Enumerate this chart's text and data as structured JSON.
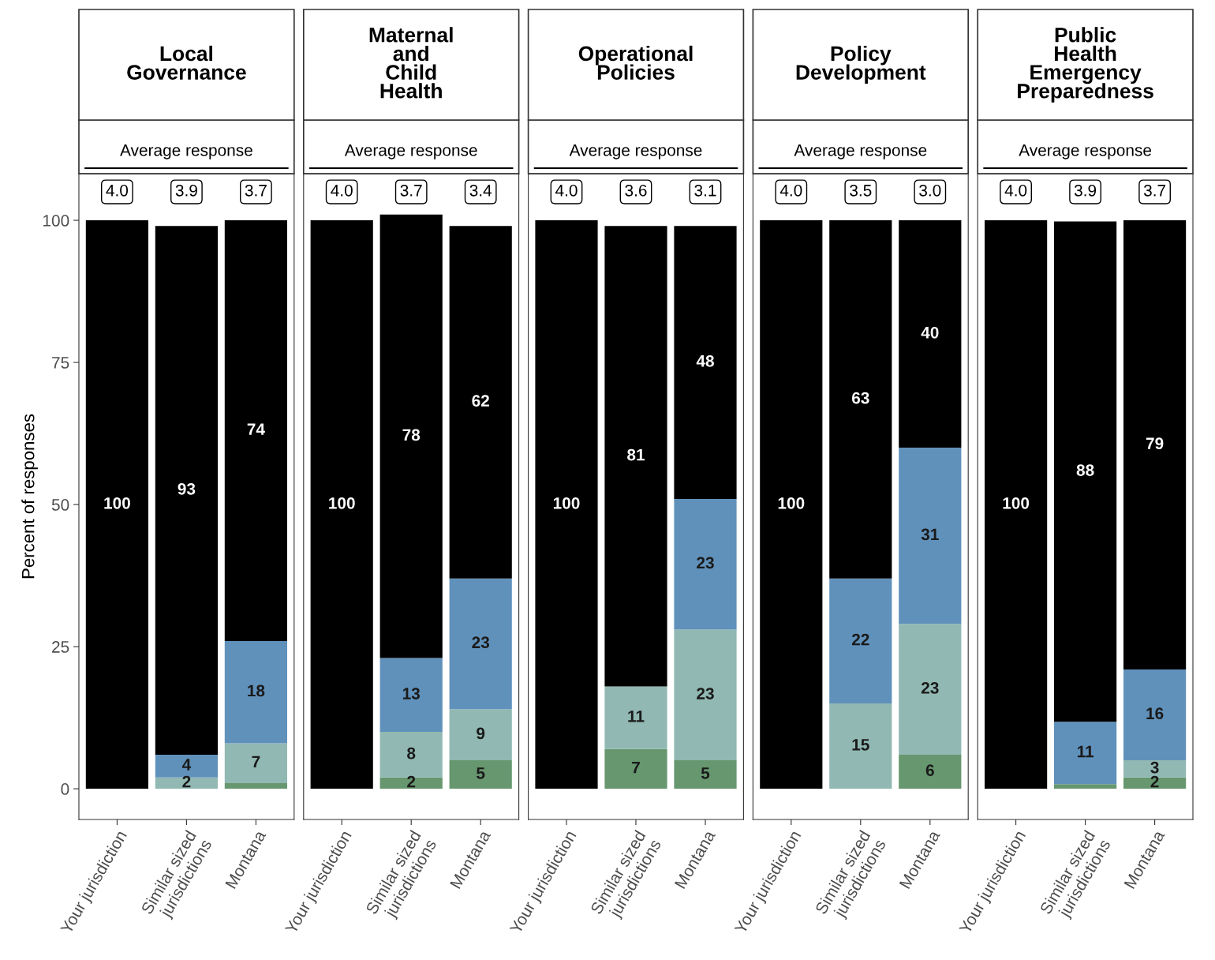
{
  "chart_data": [
    {
      "type": "bar",
      "title": "Local\nGovernance",
      "ylabel": "Percent of responses",
      "stacked": true,
      "categories": [
        "Your jurisdiction",
        "Similar sized\njurisdictions",
        "Montana"
      ],
      "ylim": [
        -5.4,
        108.2
      ],
      "yticks": [
        0,
        25,
        50,
        75,
        100
      ],
      "grid": false,
      "legend": false,
      "series": [
        {
          "color": "#66976f",
          "values": [
            0,
            0,
            1
          ],
          "value_labels": [
            null,
            null,
            null
          ]
        },
        {
          "color": "#91b8b2",
          "values": [
            0,
            2,
            7
          ],
          "value_labels": [
            null,
            "2",
            "7"
          ]
        },
        {
          "color": "#6091bb",
          "values": [
            0,
            4,
            18
          ],
          "value_labels": [
            null,
            "4",
            "18"
          ]
        },
        {
          "color": "#000000",
          "values": [
            100,
            93,
            74
          ],
          "value_labels": [
            "100",
            "93",
            "74"
          ]
        }
      ],
      "annotations": [
        "Average response",
        "4.0",
        "3.9",
        "3.7"
      ]
    },
    {
      "type": "bar",
      "title": "Maternal\nand\nChild\nHealth",
      "stacked": true,
      "categories": [
        "Your jurisdiction",
        "Similar sized\njurisdictions",
        "Montana"
      ],
      "ylim": [
        -5.4,
        108.2
      ],
      "tick_labels": "x",
      "grid": false,
      "legend": false,
      "series": [
        {
          "color": "#66976f",
          "values": [
            0,
            2,
            5
          ],
          "value_labels": [
            null,
            "2",
            "5"
          ]
        },
        {
          "color": "#91b8b2",
          "values": [
            0,
            8,
            9
          ],
          "value_labels": [
            null,
            "8",
            "9"
          ]
        },
        {
          "color": "#6091bb",
          "values": [
            0,
            13,
            23
          ],
          "value_labels": [
            null,
            "13",
            "23"
          ]
        },
        {
          "color": "#000000",
          "values": [
            100,
            78,
            62
          ],
          "value_labels": [
            "100",
            "78",
            "62"
          ]
        }
      ],
      "annotations": [
        "Average response",
        "4.0",
        "3.7",
        "3.4"
      ]
    },
    {
      "type": "bar",
      "title": "Operational\nPolicies",
      "stacked": true,
      "categories": [
        "Your jurisdiction",
        "Similar sized\njurisdictions",
        "Montana"
      ],
      "ylim": [
        -5.4,
        108.2
      ],
      "tick_labels": "x",
      "grid": false,
      "legend": false,
      "series": [
        {
          "color": "#66976f",
          "values": [
            0,
            7,
            5
          ],
          "value_labels": [
            null,
            "7",
            "5"
          ]
        },
        {
          "color": "#91b8b2",
          "values": [
            0,
            11,
            23
          ],
          "value_labels": [
            null,
            "11",
            "23"
          ]
        },
        {
          "color": "#6091bb",
          "values": [
            0,
            0,
            23
          ],
          "value_labels": [
            null,
            null,
            "23"
          ]
        },
        {
          "color": "#000000",
          "values": [
            100,
            81,
            48
          ],
          "value_labels": [
            "100",
            "81",
            "48"
          ]
        }
      ],
      "annotations": [
        "Average response",
        "4.0",
        "3.6",
        "3.1"
      ]
    },
    {
      "type": "bar",
      "title": "Policy\nDevelopment",
      "stacked": true,
      "categories": [
        "Your jurisdiction",
        "Similar sized\njurisdictions",
        "Montana"
      ],
      "ylim": [
        -5.4,
        108.2
      ],
      "tick_labels": "x",
      "grid": false,
      "legend": false,
      "series": [
        {
          "color": "#66976f",
          "values": [
            0,
            0,
            6
          ],
          "value_labels": [
            null,
            null,
            "6"
          ]
        },
        {
          "color": "#91b8b2",
          "values": [
            0,
            15,
            23
          ],
          "value_labels": [
            null,
            "15",
            "23"
          ]
        },
        {
          "color": "#6091bb",
          "values": [
            0,
            22,
            31
          ],
          "value_labels": [
            null,
            "22",
            "31"
          ]
        },
        {
          "color": "#000000",
          "values": [
            100,
            63,
            40
          ],
          "value_labels": [
            "100",
            "63",
            "40"
          ]
        }
      ],
      "annotations": [
        "Average response",
        "4.0",
        "3.5",
        "3.0"
      ]
    },
    {
      "type": "bar",
      "title": "Public\nHealth\nEmergency\nPreparedness",
      "stacked": true,
      "categories": [
        "Your jurisdiction",
        "Similar sized\njurisdictions",
        "Montana"
      ],
      "ylim": [
        -5.4,
        108.2
      ],
      "tick_labels": "x",
      "grid": false,
      "legend": false,
      "series": [
        {
          "color": "#66976f",
          "values": [
            0,
            0.8,
            2
          ],
          "value_labels": [
            null,
            null,
            "2"
          ]
        },
        {
          "color": "#91b8b2",
          "values": [
            0,
            0,
            3
          ],
          "value_labels": [
            null,
            null,
            "3"
          ]
        },
        {
          "color": "#6091bb",
          "values": [
            0,
            11,
            16
          ],
          "value_labels": [
            null,
            "11",
            "16"
          ]
        },
        {
          "color": "#000000",
          "values": [
            100,
            88,
            79
          ],
          "value_labels": [
            "100",
            "88",
            "79"
          ]
        }
      ],
      "annotations": [
        "Average response",
        "4.0",
        "3.9",
        "3.7"
      ]
    }
  ]
}
